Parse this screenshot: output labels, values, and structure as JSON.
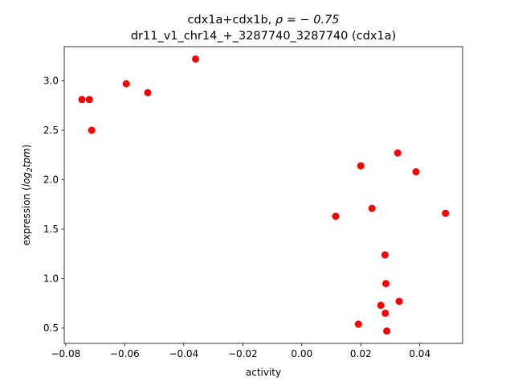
{
  "chart_data": {
    "type": "scatter",
    "title_line1_prefix": "cdx1a+cdx1b, ",
    "title_line1_rho": "ρ = − 0.75",
    "title_line2": "dr11_v1_chr14_+_3287740_3287740 (cdx1a)",
    "xlabel": "activity",
    "ylabel_prefix": "expression (",
    "ylabel_log": "log",
    "ylabel_sub": "2",
    "ylabel_tpm": "tpm",
    "ylabel_suffix": ")",
    "xlim": [
      -0.0805,
      0.0545
    ],
    "ylim": [
      0.345,
      3.345
    ],
    "x_ticks": [
      -0.08,
      -0.06,
      -0.04,
      -0.02,
      0.0,
      0.02,
      0.04
    ],
    "x_tick_labels": [
      "−0.08",
      "−0.06",
      "−0.04",
      "−0.02",
      "0.00",
      "0.02",
      "0.04"
    ],
    "y_ticks": [
      0.5,
      1.0,
      1.5,
      2.0,
      2.5,
      3.0
    ],
    "y_tick_labels": [
      "0.5",
      "1.0",
      "1.5",
      "2.0",
      "2.5",
      "3.0"
    ],
    "marker_color": "#ff0000",
    "points": [
      {
        "x": -0.0745,
        "y": 2.81
      },
      {
        "x": -0.072,
        "y": 2.81
      },
      {
        "x": -0.0712,
        "y": 2.5
      },
      {
        "x": -0.0595,
        "y": 2.97
      },
      {
        "x": -0.0522,
        "y": 2.88
      },
      {
        "x": -0.036,
        "y": 3.22
      },
      {
        "x": 0.0115,
        "y": 1.63
      },
      {
        "x": 0.02,
        "y": 2.14
      },
      {
        "x": 0.0238,
        "y": 1.71
      },
      {
        "x": 0.0325,
        "y": 2.27
      },
      {
        "x": 0.0387,
        "y": 2.08
      },
      {
        "x": 0.0487,
        "y": 1.66
      },
      {
        "x": 0.0282,
        "y": 1.24
      },
      {
        "x": 0.0285,
        "y": 0.95
      },
      {
        "x": 0.033,
        "y": 0.77
      },
      {
        "x": 0.0268,
        "y": 0.73
      },
      {
        "x": 0.0283,
        "y": 0.65
      },
      {
        "x": 0.0192,
        "y": 0.54
      },
      {
        "x": 0.0288,
        "y": 0.47
      }
    ]
  }
}
